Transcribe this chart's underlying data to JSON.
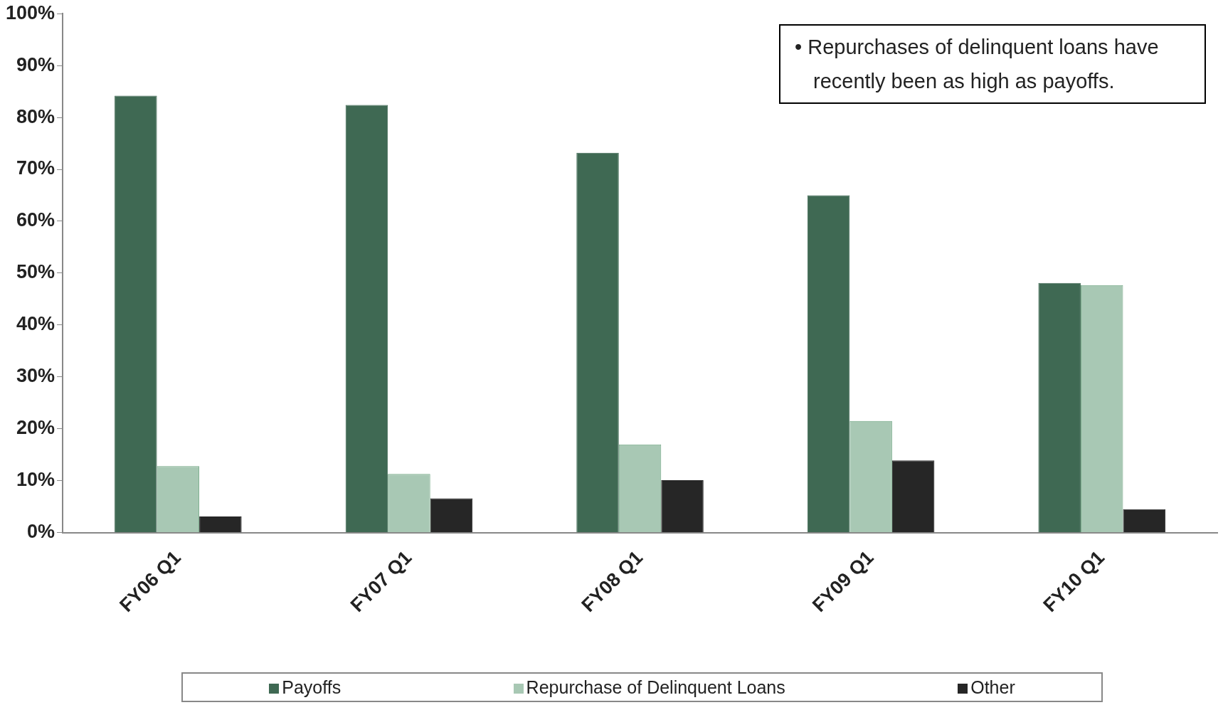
{
  "chart_data": {
    "type": "bar",
    "categories": [
      "FY06 Q1",
      "FY07 Q1",
      "FY08 Q1",
      "FY09 Q1",
      "FY10 Q1"
    ],
    "series": [
      {
        "name": "Payoffs",
        "color": "#3f6953",
        "values": [
          84.2,
          82.4,
          73.2,
          65.0,
          48.1
        ]
      },
      {
        "name": "Repurchase of Delinquent Loans",
        "color": "#a8c8b4",
        "values": [
          12.8,
          11.3,
          17.0,
          21.5,
          47.7
        ]
      },
      {
        "name": "Other",
        "color": "#262626",
        "values": [
          3.1,
          6.6,
          10.1,
          13.9,
          4.5
        ]
      }
    ],
    "ylim": [
      0,
      100
    ],
    "yticks": [
      {
        "value": 0,
        "label": "0%"
      },
      {
        "value": 10,
        "label": "10%"
      },
      {
        "value": 20,
        "label": "20%"
      },
      {
        "value": 30,
        "label": "30%"
      },
      {
        "value": 40,
        "label": "40%"
      },
      {
        "value": 50,
        "label": "50%"
      },
      {
        "value": 60,
        "label": "60%"
      },
      {
        "value": 70,
        "label": "70%"
      },
      {
        "value": 80,
        "label": "80%"
      },
      {
        "value": 90,
        "label": "90%"
      },
      {
        "value": 100,
        "label": "100%"
      }
    ],
    "annotations": [
      "• Repurchases of delinquent loans have recently been as high as payoffs."
    ],
    "grid": false,
    "legend": "bottom"
  }
}
